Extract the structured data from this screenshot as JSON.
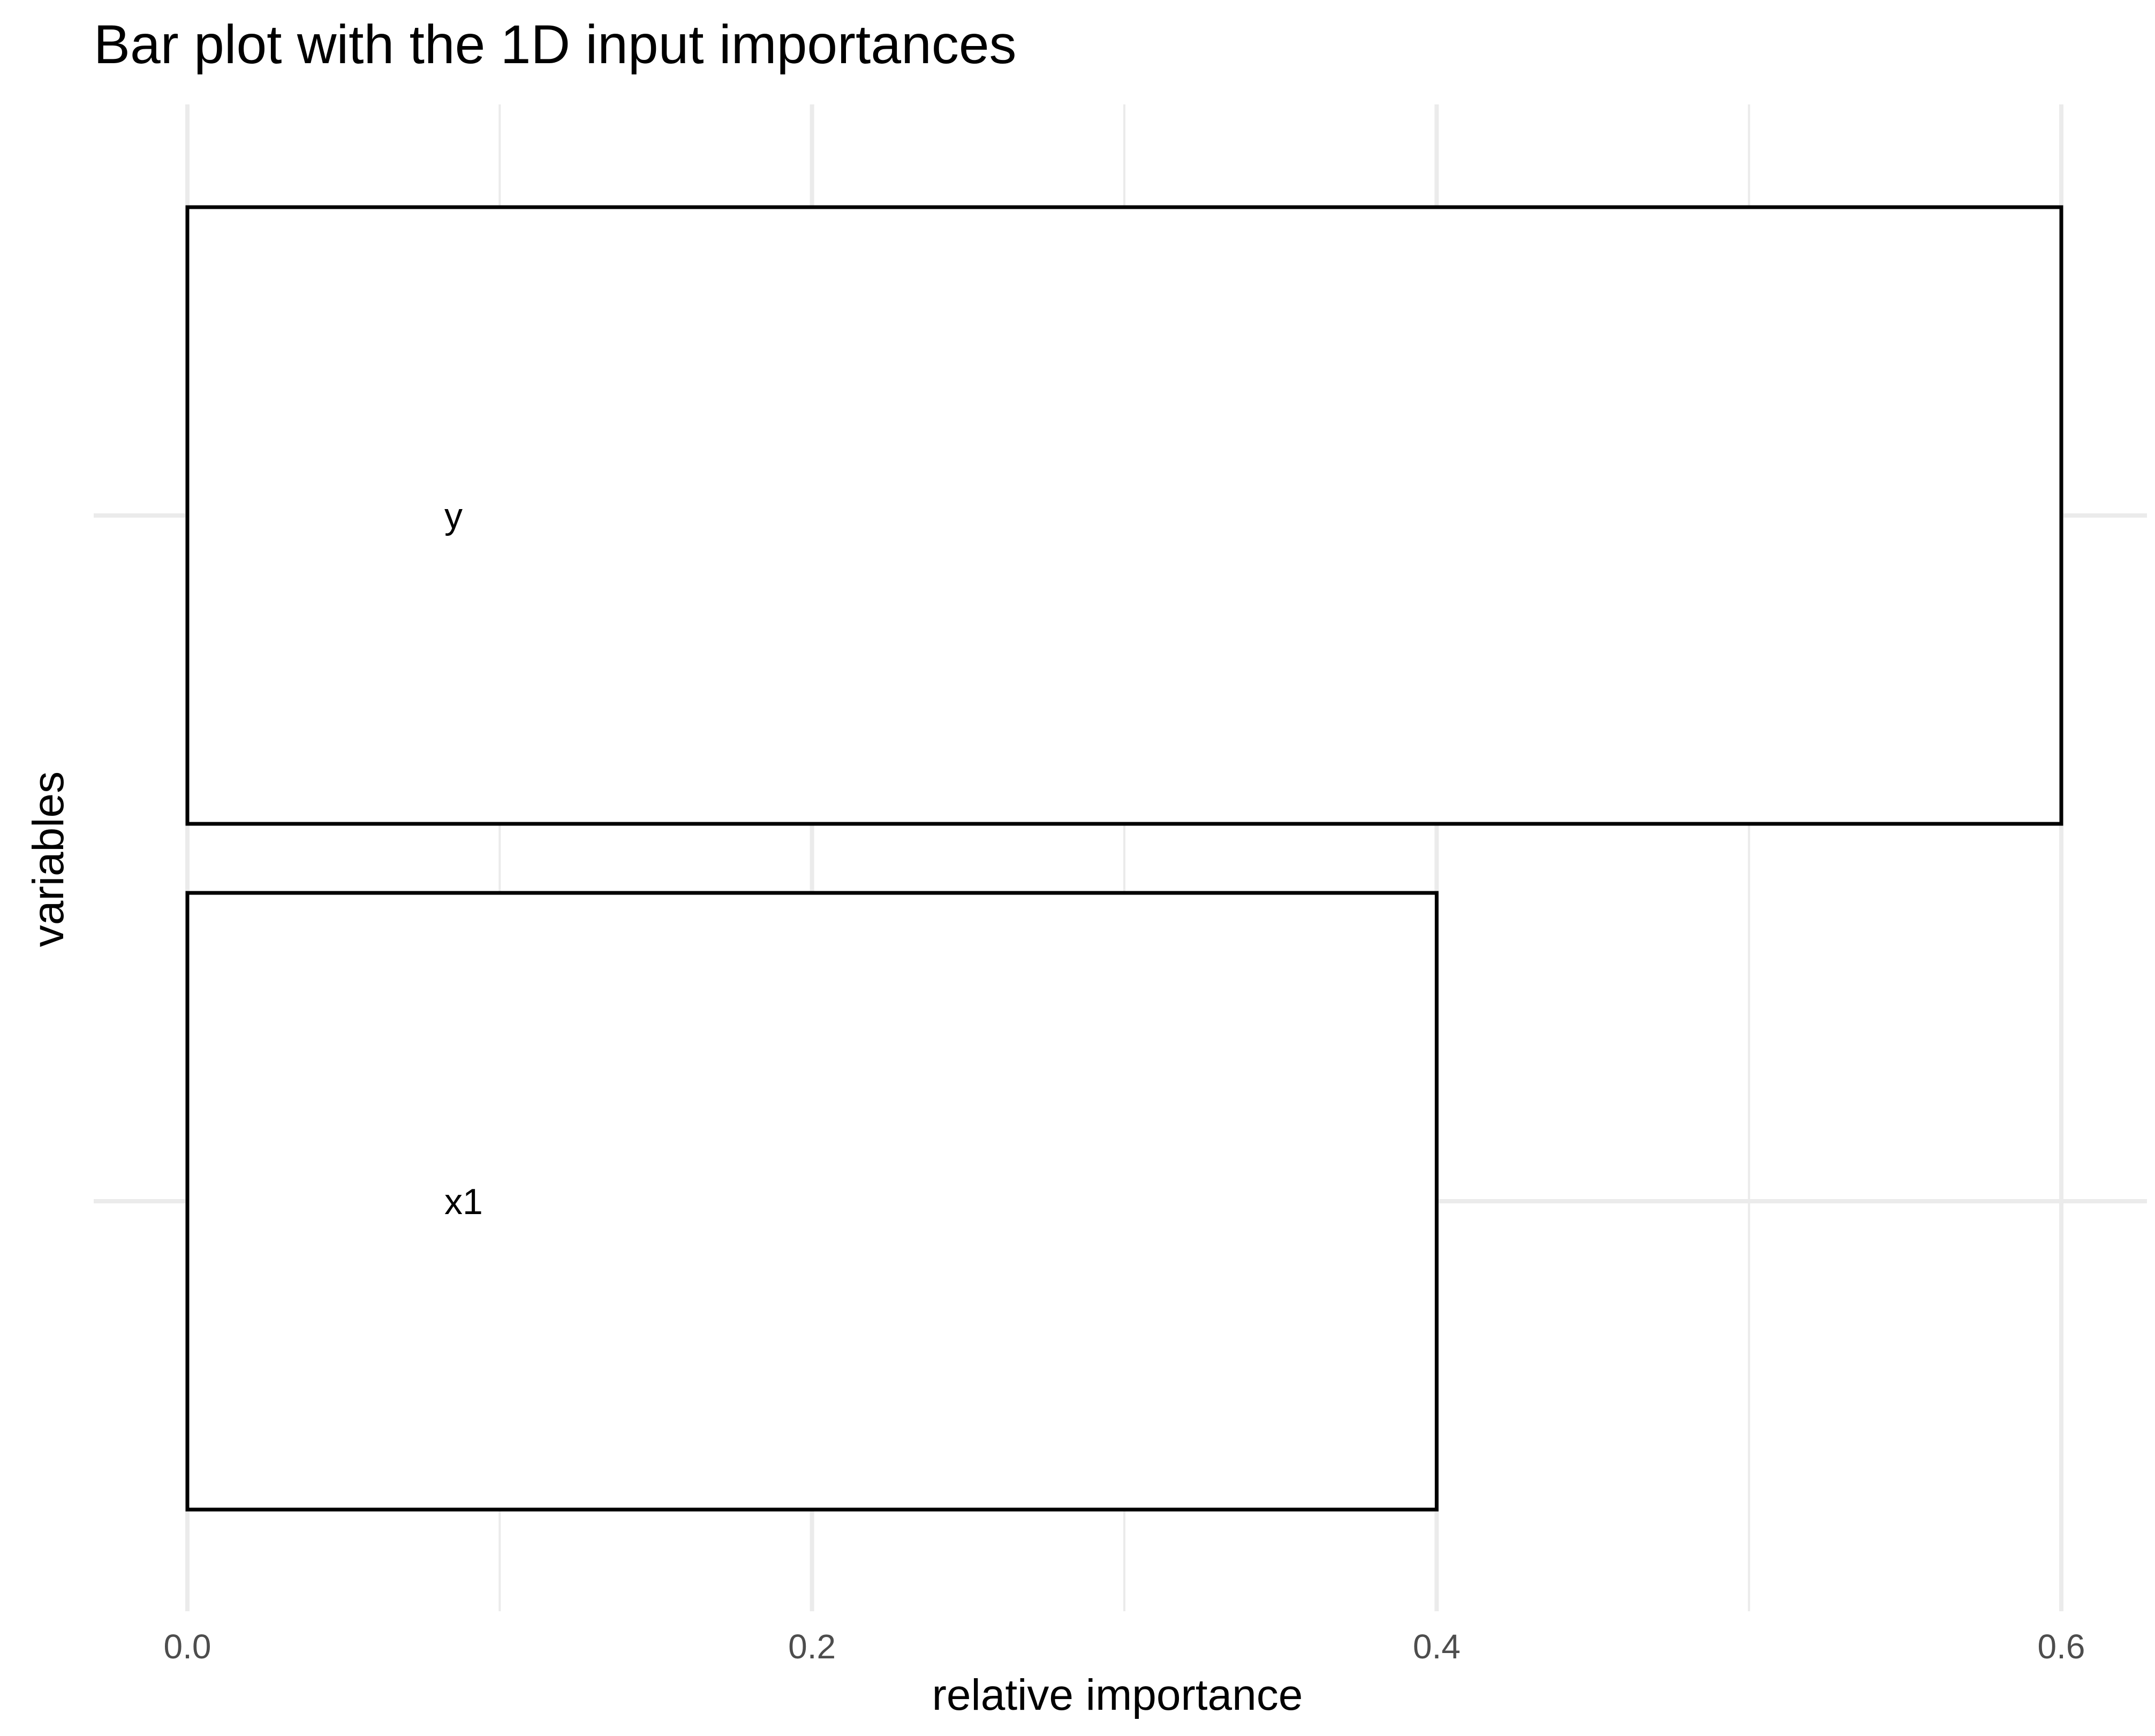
{
  "chart_data": {
    "type": "bar",
    "orientation": "horizontal",
    "title": "Bar plot with the 1D input importances",
    "xlabel": "relative importance",
    "ylabel": "variables",
    "categories": [
      "y",
      "x1"
    ],
    "values": [
      0.6,
      0.4
    ],
    "xlim": [
      0,
      0.6
    ],
    "xticks": [
      0.0,
      0.2,
      0.4,
      0.6
    ],
    "xtick_labels": [
      "0.0",
      "0.2",
      "0.4",
      "0.6"
    ],
    "grid": true,
    "legend": "none",
    "colors": {
      "bar_fill": "#ffffff",
      "bar_outline": "#000000",
      "grid": "#ebebeb",
      "tick_text": "#4d4d4d"
    }
  }
}
